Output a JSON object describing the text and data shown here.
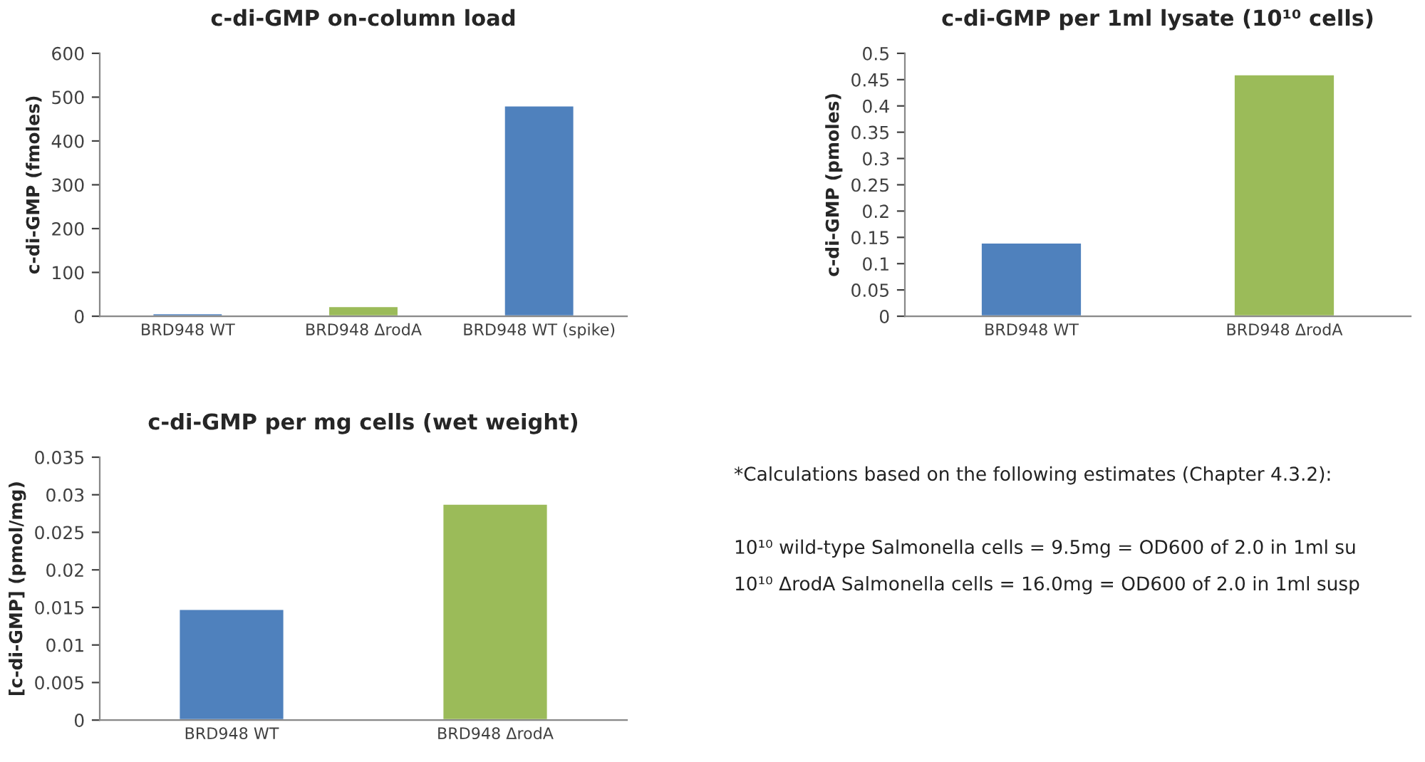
{
  "chart_data": [
    {
      "type": "bar",
      "title": "c-di-GMP on-column load",
      "ylabel": "c-di-GMP (fmoles)",
      "categories": [
        "BRD948 WT",
        "BRD948 ΔrodA",
        "BRD948 WT (spike)"
      ],
      "values": [
        7,
        23,
        481
      ],
      "colors": [
        "#4f81bd",
        "#9bbb59",
        "#4f81bd"
      ],
      "ylim": [
        0,
        600
      ],
      "yticks": [
        0,
        100,
        200,
        300,
        400,
        500,
        600
      ],
      "grid": false
    },
    {
      "type": "bar",
      "title": "c-di-GMP per 1ml lysate (10¹⁰ cells)",
      "ylabel": "c-di-GMP (pmoles)",
      "categories": [
        "BRD948 WT",
        "BRD948 ΔrodA"
      ],
      "values": [
        0.14,
        0.46
      ],
      "colors": [
        "#4f81bd",
        "#9bbb59"
      ],
      "ylim": [
        0,
        0.5
      ],
      "yticks": [
        0,
        0.05,
        0.1,
        0.15,
        0.2,
        0.25,
        0.3,
        0.35,
        0.4,
        0.45,
        0.5
      ],
      "grid": false
    },
    {
      "type": "bar",
      "title": "c-di-GMP per mg cells (wet weight)",
      "ylabel": "[c-di-GMP] (pmol/mg)",
      "categories": [
        "BRD948 WT",
        "BRD948 ΔrodA"
      ],
      "values": [
        0.0148,
        0.0288
      ],
      "colors": [
        "#4f81bd",
        "#9bbb59"
      ],
      "ylim": [
        0,
        0.035
      ],
      "yticks": [
        0,
        0.005,
        0.01,
        0.015,
        0.02,
        0.025,
        0.03,
        0.035
      ],
      "grid": false
    },
    {
      "type": "other",
      "annotations": [
        "*Calculations based on the following estimates (Chapter 4.3.2):",
        "10¹⁰ wild-type Salmonella cells = 9.5mg = OD600 of 2.0 in 1ml su",
        "10¹⁰ ΔrodA Salmonella cells = 16.0mg = OD600 of 2.0 in 1ml susp"
      ]
    }
  ]
}
